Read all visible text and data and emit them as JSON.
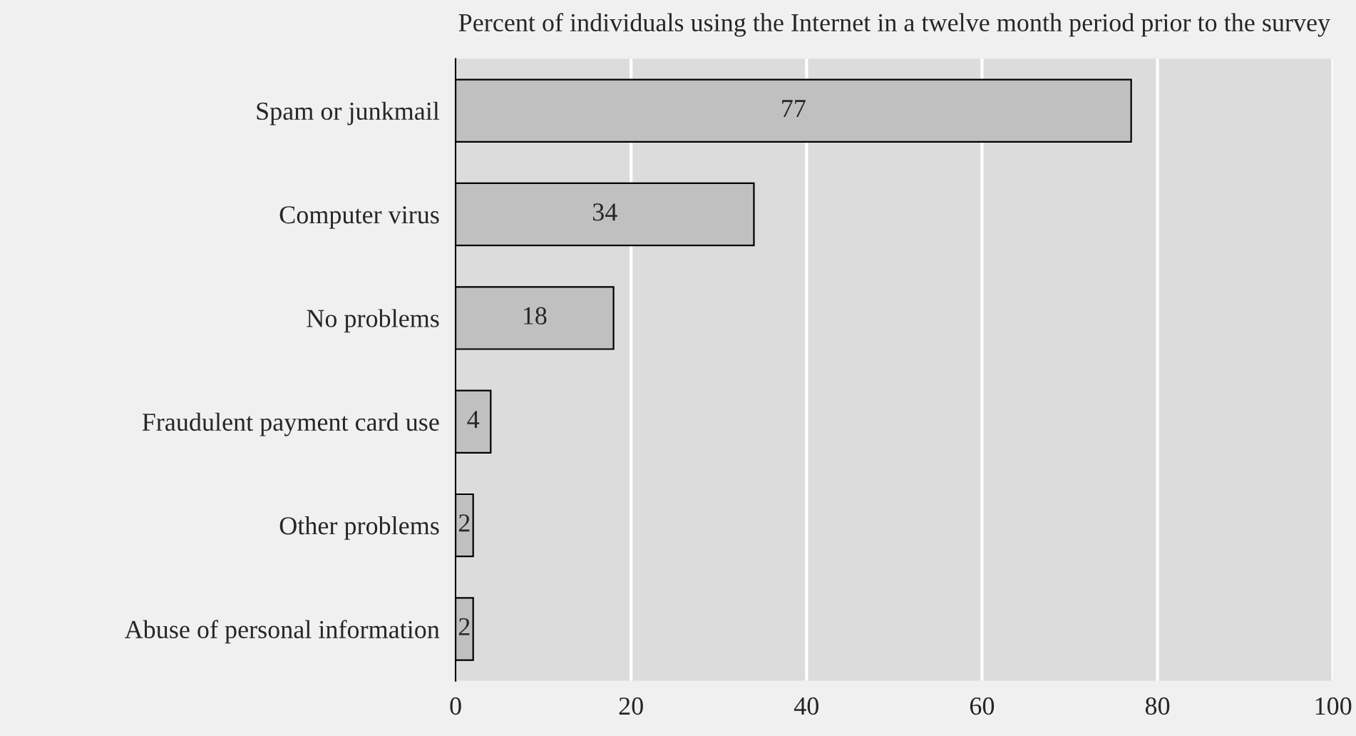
{
  "chart_data": {
    "type": "bar",
    "orientation": "horizontal",
    "title": "Percent of individuals using the Internet in a twelve month period prior to the survey",
    "categories": [
      "Spam or junkmail",
      "Computer virus",
      "No problems",
      "Fraudulent payment card use",
      "Other problems",
      "Abuse of personal information"
    ],
    "values": [
      77,
      34,
      18,
      4,
      2,
      2
    ],
    "color": "#c0c0c0",
    "data_labels": true,
    "xlim": [
      0,
      100
    ],
    "xticks": [
      0,
      20,
      40,
      60,
      80,
      100
    ],
    "grid": "x",
    "legend": false
  }
}
